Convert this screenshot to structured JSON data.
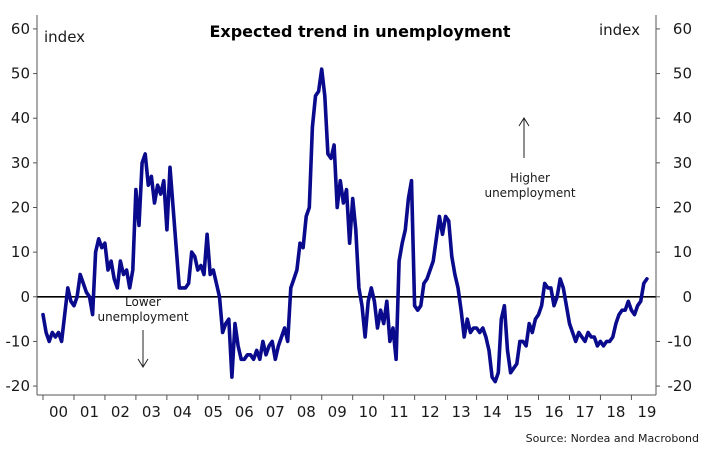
{
  "chart_data": {
    "type": "line",
    "title": "Expected trend in unemployment",
    "unit_left": "index",
    "unit_right": "index",
    "source": "Source: Nordea and Macrobond",
    "ylim": [
      -22,
      62
    ],
    "y_ticks": [
      -20,
      -10,
      0,
      10,
      20,
      30,
      40,
      50,
      60
    ],
    "xlim": [
      2000.0,
      2019.6
    ],
    "x_tick_labels": [
      "00",
      "01",
      "02",
      "03",
      "04",
      "05",
      "06",
      "07",
      "08",
      "09",
      "10",
      "11",
      "12",
      "13",
      "14",
      "15",
      "16",
      "17",
      "18",
      "19"
    ],
    "zero_line": true,
    "grid": false,
    "line_color": "#0a0a8c",
    "annotations": {
      "higher": [
        "Higher",
        "unemployment"
      ],
      "lower": [
        "Lower",
        "unemployment"
      ]
    },
    "series": [
      {
        "x": [
          2000.0,
          2000.1,
          2000.2,
          2000.3,
          2000.4,
          2000.5,
          2000.6,
          2000.7,
          2000.8,
          2000.9,
          2001.0,
          2001.1,
          2001.2,
          2001.3,
          2001.4,
          2001.5,
          2001.6,
          2001.7,
          2001.8,
          2001.9,
          2002.0,
          2002.1,
          2002.2,
          2002.3,
          2002.4,
          2002.5,
          2002.6,
          2002.7,
          2002.8,
          2002.9,
          2003.0,
          2003.1,
          2003.2,
          2003.3,
          2003.4,
          2003.5,
          2003.6,
          2003.7,
          2003.8,
          2003.9,
          2004.0,
          2004.1,
          2004.2,
          2004.3,
          2004.4,
          2004.5,
          2004.6,
          2004.7,
          2004.8,
          2004.9,
          2005.0,
          2005.1,
          2005.2,
          2005.3,
          2005.4,
          2005.5,
          2005.6,
          2005.7,
          2005.8,
          2005.9,
          2006.0,
          2006.1,
          2006.2,
          2006.3,
          2006.4,
          2006.5,
          2006.6,
          2006.7,
          2006.8,
          2006.9,
          2007.0,
          2007.1,
          2007.2,
          2007.3,
          2007.4,
          2007.5,
          2007.6,
          2007.7,
          2007.8,
          2007.9,
          2008.0,
          2008.1,
          2008.2,
          2008.3,
          2008.4,
          2008.5,
          2008.6,
          2008.7,
          2008.8,
          2008.9,
          2009.0,
          2009.1,
          2009.2,
          2009.3,
          2009.4,
          2009.5,
          2009.6,
          2009.7,
          2009.8,
          2009.9,
          2010.0,
          2010.1,
          2010.2,
          2010.3,
          2010.4,
          2010.5,
          2010.6,
          2010.7,
          2010.8,
          2010.9,
          2011.0,
          2011.1,
          2011.2,
          2011.3,
          2011.4,
          2011.5,
          2011.6,
          2011.7,
          2011.8,
          2011.9,
          2012.0,
          2012.1,
          2012.2,
          2012.3,
          2012.4,
          2012.5,
          2012.6,
          2012.7,
          2012.8,
          2012.9,
          2013.0,
          2013.1,
          2013.2,
          2013.3,
          2013.4,
          2013.5,
          2013.6,
          2013.7,
          2013.8,
          2013.9,
          2014.0,
          2014.1,
          2014.2,
          2014.3,
          2014.4,
          2014.5,
          2014.6,
          2014.7,
          2014.8,
          2014.9,
          2015.0,
          2015.1,
          2015.2,
          2015.3,
          2015.4,
          2015.5,
          2015.6,
          2015.7,
          2015.8,
          2015.9,
          2016.0,
          2016.1,
          2016.2,
          2016.3,
          2016.4,
          2016.5,
          2016.6,
          2016.7,
          2016.8,
          2016.9,
          2017.0,
          2017.1,
          2017.2,
          2017.3,
          2017.4,
          2017.5,
          2017.6,
          2017.7,
          2017.8,
          2017.9,
          2018.0,
          2018.1,
          2018.2,
          2018.3,
          2018.4,
          2018.5,
          2018.6,
          2018.7,
          2018.8,
          2018.9,
          2019.0,
          2019.1,
          2019.2,
          2019.3,
          2019.4,
          2019.5
        ],
        "values": [
          -4,
          -8,
          -10,
          -8,
          -9,
          -8,
          -10,
          -4,
          2,
          -1,
          -2,
          0,
          5,
          3,
          1,
          0,
          -4,
          10,
          13,
          11,
          12,
          6,
          8,
          4,
          2,
          8,
          5,
          6,
          2,
          6,
          24,
          16,
          30,
          32,
          25,
          27,
          21,
          25,
          23,
          26,
          15,
          29,
          20,
          11,
          2,
          2,
          2,
          3,
          10,
          9,
          6,
          7,
          5,
          14,
          5,
          6,
          3,
          0,
          -8,
          -6,
          -5,
          -18,
          -6,
          -11,
          -14,
          -14,
          -13,
          -13,
          -14,
          -12,
          -14,
          -10,
          -13,
          -11,
          -10,
          -14,
          -11,
          -9,
          -7,
          -10,
          2,
          4,
          6,
          12,
          11,
          18,
          20,
          38,
          45,
          46,
          51,
          45,
          32,
          31,
          34,
          20,
          26,
          21,
          24,
          12,
          22,
          15,
          2,
          -2,
          -9,
          -1,
          2,
          -1,
          -7,
          -3,
          -6,
          -1,
          -10,
          -7,
          -14,
          8,
          12,
          15,
          22,
          26,
          -2,
          -3,
          -2,
          3,
          4,
          6,
          8,
          13,
          18,
          14,
          18,
          17,
          9,
          5,
          2,
          -3,
          -9,
          -5,
          -8,
          -7,
          -7,
          -8,
          -7,
          -9,
          -12,
          -18,
          -19,
          -17,
          -5,
          -2,
          -12,
          -17,
          -16,
          -15,
          -10,
          -10,
          -11,
          -6,
          -8,
          -5,
          -4,
          -2,
          3,
          2,
          2,
          -2,
          0,
          4,
          2,
          -2,
          -6,
          -8,
          -10,
          -8,
          -9,
          -10,
          -8,
          -9,
          -9,
          -11,
          -10,
          -11,
          -10,
          -10,
          -9,
          -6,
          -4,
          -3,
          -3,
          -1,
          -3,
          -4,
          -2,
          -1,
          3,
          4
        ]
      }
    ]
  }
}
